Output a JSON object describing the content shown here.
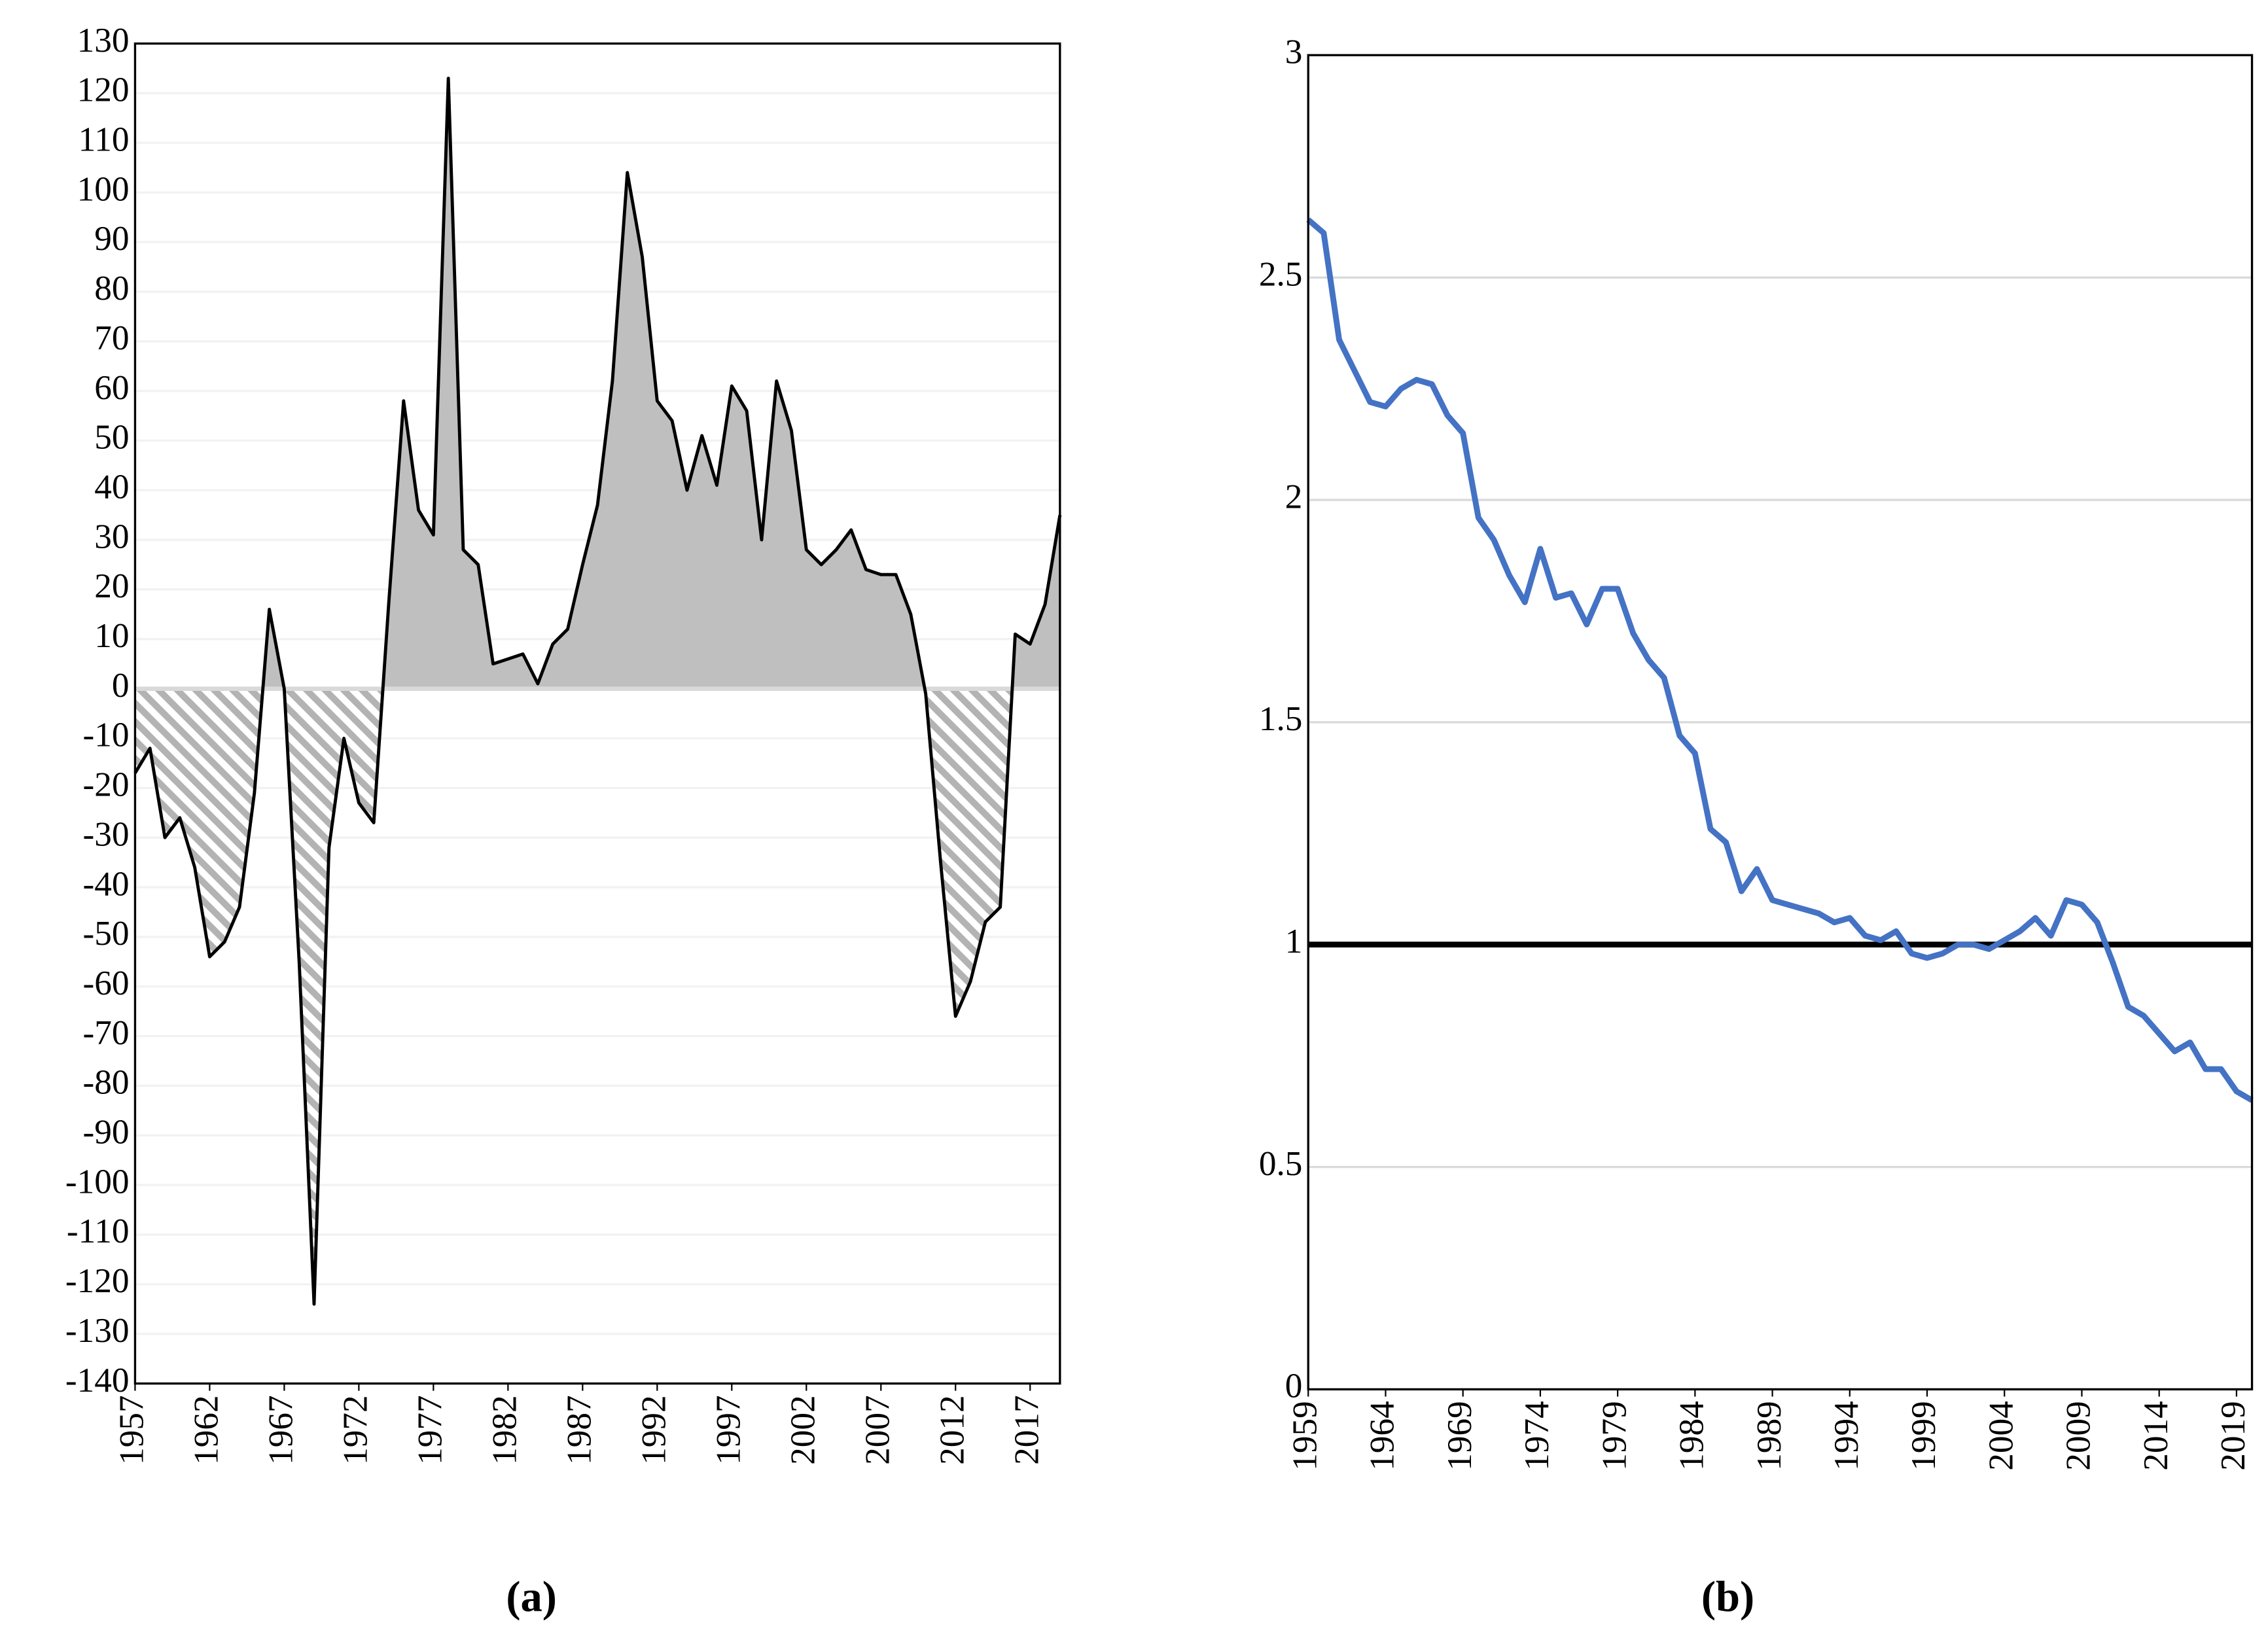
{
  "chart_data": [
    {
      "type": "area",
      "caption": "(a)",
      "x": [
        1957,
        1958,
        1959,
        1960,
        1961,
        1962,
        1963,
        1964,
        1965,
        1966,
        1967,
        1968,
        1969,
        1970,
        1971,
        1972,
        1973,
        1974,
        1975,
        1976,
        1977,
        1978,
        1979,
        1980,
        1981,
        1982,
        1983,
        1984,
        1985,
        1986,
        1987,
        1988,
        1989,
        1990,
        1991,
        1992,
        1993,
        1994,
        1995,
        1996,
        1997,
        1998,
        1999,
        2000,
        2001,
        2002,
        2003,
        2004,
        2005,
        2006,
        2007,
        2008,
        2009,
        2010,
        2011,
        2012,
        2013,
        2014,
        2015,
        2016,
        2017,
        2018,
        2019
      ],
      "values": [
        -17,
        -12,
        -30,
        -26,
        -36,
        -54,
        -51,
        -44,
        -21,
        16,
        0,
        -55,
        -124,
        -32,
        -10,
        -23,
        -27,
        17,
        58,
        36,
        31,
        123,
        28,
        25,
        5,
        6,
        7,
        1,
        9,
        12,
        25,
        37,
        62,
        104,
        87,
        58,
        54,
        40,
        51,
        41,
        61,
        56,
        30,
        62,
        52,
        28,
        25,
        28,
        32,
        24,
        23,
        23,
        15,
        -1,
        -35,
        -66,
        -59,
        -47,
        -44,
        11,
        9,
        17,
        35
      ],
      "color": "#000000",
      "positive_fill": "#bfbfbf",
      "negative_fill": "hatched",
      "xlim": [
        1957,
        2019
      ],
      "xticks": [
        1957,
        1962,
        1967,
        1972,
        1977,
        1982,
        1987,
        1992,
        1997,
        2002,
        2007,
        2012,
        2017
      ],
      "ylim": [
        -140,
        130
      ],
      "yticks": [
        -140,
        -130,
        -120,
        -110,
        -100,
        -90,
        -80,
        -70,
        -60,
        -50,
        -40,
        -30,
        -20,
        -10,
        0,
        10,
        20,
        30,
        40,
        50,
        60,
        70,
        80,
        90,
        100,
        110,
        120,
        130
      ],
      "grid": true,
      "grid_color": "#f2f2f2",
      "zero_line": true
    },
    {
      "type": "line",
      "caption": "(b)",
      "x": [
        1959,
        1960,
        1961,
        1962,
        1963,
        1964,
        1965,
        1966,
        1967,
        1968,
        1969,
        1970,
        1971,
        1972,
        1973,
        1974,
        1975,
        1976,
        1977,
        1978,
        1979,
        1980,
        1981,
        1982,
        1983,
        1984,
        1985,
        1986,
        1987,
        1988,
        1989,
        1990,
        1991,
        1992,
        1993,
        1994,
        1995,
        1996,
        1997,
        1998,
        1999,
        2000,
        2001,
        2002,
        2003,
        2004,
        2005,
        2006,
        2007,
        2008,
        2009,
        2010,
        2011,
        2012,
        2013,
        2014,
        2015,
        2016,
        2017,
        2018,
        2019,
        2020
      ],
      "values": [
        2.63,
        2.6,
        2.36,
        2.29,
        2.22,
        2.21,
        2.25,
        2.27,
        2.26,
        2.19,
        2.15,
        1.96,
        1.91,
        1.83,
        1.77,
        1.89,
        1.78,
        1.79,
        1.72,
        1.8,
        1.8,
        1.7,
        1.64,
        1.6,
        1.47,
        1.43,
        1.26,
        1.23,
        1.12,
        1.17,
        1.1,
        1.09,
        1.08,
        1.07,
        1.05,
        1.06,
        1.02,
        1.01,
        1.03,
        0.98,
        0.97,
        0.98,
        1.0,
        1.0,
        0.99,
        1.01,
        1.03,
        1.06,
        1.02,
        1.1,
        1.09,
        1.05,
        0.96,
        0.86,
        0.84,
        0.8,
        0.76,
        0.78,
        0.72,
        0.72,
        0.67,
        0.65
      ],
      "color": "#4472c4",
      "xlim": [
        1959,
        2020
      ],
      "xticks": [
        1959,
        1964,
        1969,
        1974,
        1979,
        1984,
        1989,
        1994,
        1999,
        2004,
        2009,
        2014,
        2019
      ],
      "ylim": [
        0,
        3
      ],
      "yticks": [
        0,
        0.5,
        1,
        1.5,
        2,
        2.5,
        3
      ],
      "grid": true,
      "grid_color": "#d9d9d9",
      "reference_line": 1
    }
  ]
}
